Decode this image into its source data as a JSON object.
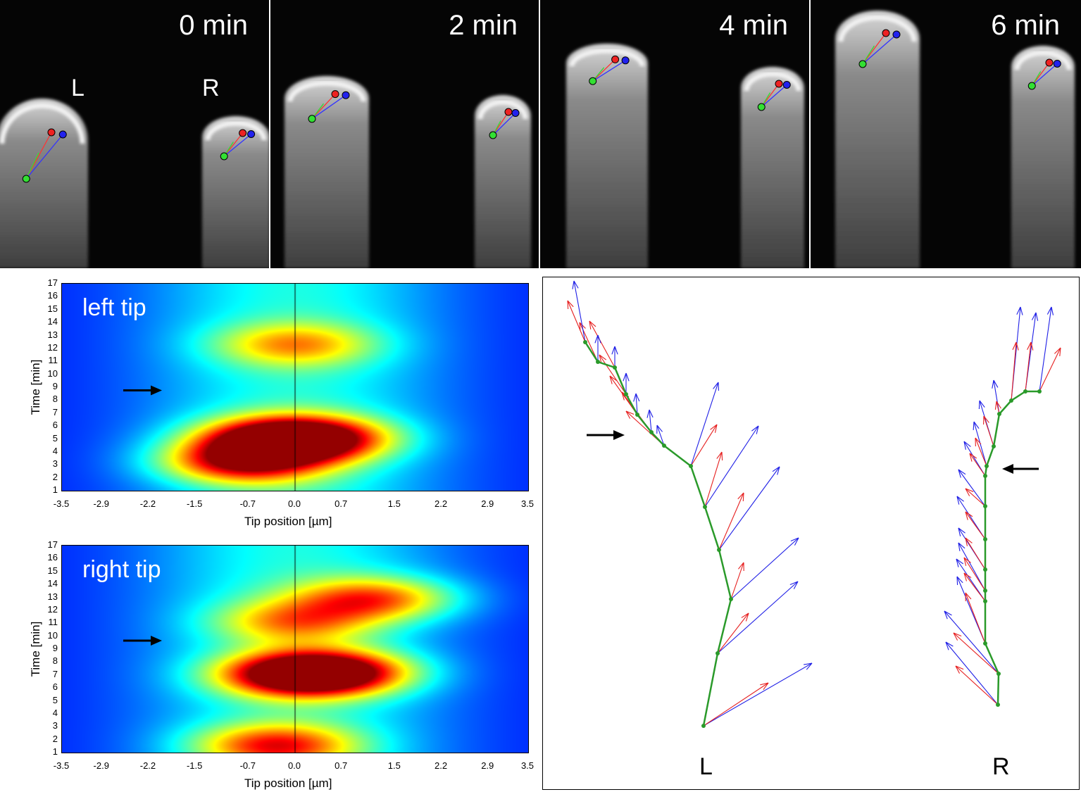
{
  "micrographs": [
    {
      "label": "0 min"
    },
    {
      "label": "2 min"
    },
    {
      "label": "4 min"
    },
    {
      "label": "6 min"
    }
  ],
  "tip_labels": {
    "left": "L",
    "right": "R"
  },
  "chart_data": [
    {
      "type": "heatmap",
      "title": "left tip",
      "xlabel": "Tip position [µm]",
      "ylabel": "Time [min]",
      "x_ticks": [
        "-3.5",
        "-2.9",
        "-2.2",
        "-1.5",
        "-0.7",
        "0.0",
        "0.7",
        "1.5",
        "2.2",
        "2.9",
        "3.5"
      ],
      "y_ticks": [
        "1",
        "2",
        "3",
        "4",
        "5",
        "6",
        "7",
        "8",
        "9",
        "10",
        "11",
        "12",
        "13",
        "14",
        "15",
        "16",
        "17"
      ],
      "xlim": [
        -3.5,
        3.5
      ],
      "ylim": [
        1,
        17
      ],
      "arrow_time": 8.7,
      "colormap": "jet",
      "hotspots": [
        {
          "x": -0.8,
          "y": 3.2,
          "intensity": 1.0
        },
        {
          "x": -0.3,
          "y": 5.0,
          "intensity": 0.95
        },
        {
          "x": 0.3,
          "y": 5.0,
          "intensity": 0.85
        },
        {
          "x": 0.0,
          "y": 12.3,
          "intensity": 0.6
        }
      ]
    },
    {
      "type": "heatmap",
      "title": "right tip",
      "xlabel": "Tip position [µm]",
      "ylabel": "Time [min]",
      "x_ticks": [
        "-3.5",
        "-2.9",
        "-2.2",
        "-1.5",
        "-0.7",
        "0.0",
        "0.7",
        "1.5",
        "2.2",
        "2.9",
        "3.5"
      ],
      "y_ticks": [
        "1",
        "2",
        "3",
        "4",
        "5",
        "6",
        "7",
        "8",
        "9",
        "10",
        "11",
        "12",
        "13",
        "14",
        "15",
        "16",
        "17"
      ],
      "xlim": [
        -3.5,
        3.5
      ],
      "ylim": [
        1,
        17
      ],
      "arrow_time": 9.6,
      "colormap": "jet",
      "hotspots": [
        {
          "x": 0.0,
          "y": 7.0,
          "intensity": 1.0
        },
        {
          "x": 0.6,
          "y": 7.2,
          "intensity": 0.9
        },
        {
          "x": 1.2,
          "y": 12.9,
          "intensity": 0.8
        },
        {
          "x": -0.3,
          "y": 1.5,
          "intensity": 0.85
        },
        {
          "x": 0.0,
          "y": 11.1,
          "intensity": 0.6
        }
      ]
    }
  ],
  "vector_plot": {
    "labels": {
      "left": "L",
      "right": "R"
    }
  },
  "colors": {
    "vector_blue": "#1f1fe6",
    "vector_red": "#e61f1f",
    "path_green": "#2a9a2a",
    "marker_green": "#33e033"
  }
}
